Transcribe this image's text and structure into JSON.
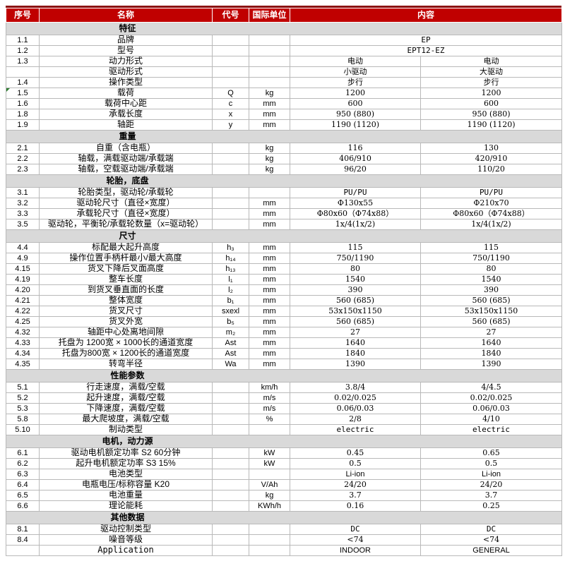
{
  "colors": {
    "header_bg": "#c00000",
    "header_top_strip": "#8b0d0d",
    "header_text": "#ffffff",
    "section_bg": "#d9d9d9",
    "grid_line": "#b9b9b9",
    "marker_green": "#2f7d32",
    "text": "#000000"
  },
  "table": {
    "header": {
      "columns": [
        "序号",
        "名称",
        "代号",
        "国际单位",
        "内容"
      ]
    },
    "sections": [
      {
        "title": "特征",
        "rows": [
          {
            "no": "1.1",
            "name": "品牌",
            "code": "",
            "unit": "",
            "v1": "EP",
            "v2": "",
            "merged": true,
            "vf": "mono"
          },
          {
            "no": "1.2",
            "name": "型号",
            "code": "",
            "unit": "",
            "v1": "EPT12-EZ",
            "v2": "",
            "merged": true,
            "vf": "mono"
          },
          {
            "no": "1.3",
            "name": "动力形式",
            "code": "",
            "unit": "",
            "v1": "电动",
            "v2": "电动"
          },
          {
            "no": "",
            "name": "驱动形式",
            "code": "",
            "unit": "",
            "v1": "小驱动",
            "v2": "大驱动"
          },
          {
            "no": "1.4",
            "name": "操作类型",
            "code": "",
            "unit": "",
            "v1": "步行",
            "v2": "步行"
          },
          {
            "no": "1.5",
            "name": "载荷",
            "code": "Q",
            "unit": "kg",
            "v1": "1200",
            "v2": "1200",
            "marker": true
          },
          {
            "no": "1.6",
            "name": "载荷中心距",
            "code": "c",
            "unit": "mm",
            "v1": "600",
            "v2": "600"
          },
          {
            "no": "1.8",
            "name": "承载长度",
            "code": "x",
            "unit": "mm",
            "v1": "950 (880)",
            "v2": "950 (880)"
          },
          {
            "no": "1.9",
            "name": "轴距",
            "code": "y",
            "unit": "mm",
            "v1": "1190 (1120)",
            "v2": "1190 (1120)"
          }
        ]
      },
      {
        "title": "重量",
        "rows": [
          {
            "no": "2.1",
            "name": "自重（含电瓶）",
            "code": "",
            "unit": "kg",
            "v1": "116",
            "v2": "130"
          },
          {
            "no": "2.2",
            "name": "轴载，满载驱动端/承载端",
            "code": "",
            "unit": "kg",
            "v1": "406/910",
            "v2": "420/910"
          },
          {
            "no": "2.3",
            "name": "轴载，空载驱动端/承载端",
            "code": "",
            "unit": "kg",
            "v1": "96/20",
            "v2": "110/20"
          }
        ]
      },
      {
        "title": "轮胎，底盘",
        "rows": [
          {
            "no": "3.1",
            "name": "轮胎类型，驱动轮/承载轮",
            "code": "",
            "unit": "",
            "v1": "PU/PU",
            "v2": "PU/PU",
            "vf": "mono"
          },
          {
            "no": "3.2",
            "name": "驱动轮尺寸（直径×宽度）",
            "code": "",
            "unit": "mm",
            "v1": "Φ130x55",
            "v2": "Φ210x70"
          },
          {
            "no": "3.3",
            "name": "承载轮尺寸（直径×宽度）",
            "code": "",
            "unit": "mm",
            "v1": "Φ80x60（Φ74x88）",
            "v2": "Φ80x60（Φ74x88）"
          },
          {
            "no": "3.5",
            "name": "驱动轮，平衡轮/承载轮数量（x=驱动轮）",
            "code": "",
            "unit": "mm",
            "v1": "1x/4(1x/2)",
            "v2": "1x/4(1x/2)"
          }
        ]
      },
      {
        "title": "尺寸",
        "rows": [
          {
            "no": "4.4",
            "name": "标配最大起升高度",
            "code": "h₃",
            "unit": "mm",
            "v1": "115",
            "v2": "115"
          },
          {
            "no": "4.9",
            "name": "操作位置手柄杆最小/最大高度",
            "code": "h₁₄",
            "unit": "mm",
            "v1": "750/1190",
            "v2": "750/1190"
          },
          {
            "no": "4.15",
            "name": "货叉下降后叉面高度",
            "code": "h₁₃",
            "unit": "mm",
            "v1": "80",
            "v2": "80"
          },
          {
            "no": "4.19",
            "name": "整车长度",
            "code": "l₁",
            "unit": "mm",
            "v1": "1540",
            "v2": "1540"
          },
          {
            "no": "4.20",
            "name": "到货叉垂直面的长度",
            "code": "l₂",
            "unit": "mm",
            "v1": "390",
            "v2": "390"
          },
          {
            "no": "4.21",
            "name": "整体宽度",
            "code": "b₁",
            "unit": "mm",
            "v1": "560 (685)",
            "v2": "560 (685)"
          },
          {
            "no": "4.22",
            "name": "货叉尺寸",
            "code": "sxexl",
            "unit": "mm",
            "v1": "53x150x1150",
            "v2": "53x150x1150"
          },
          {
            "no": "4.25",
            "name": "货叉外宽",
            "code": "b₅",
            "unit": "mm",
            "v1": "560 (685)",
            "v2": "560 (685)"
          },
          {
            "no": "4.32",
            "name": "轴距中心处离地间隙",
            "code": "m₂",
            "unit": "mm",
            "v1": "27",
            "v2": "27"
          },
          {
            "no": "4.33",
            "name": "托盘为 1200宽 × 1000长的通道宽度",
            "code": "Ast",
            "unit": "mm",
            "v1": "1640",
            "v2": "1640"
          },
          {
            "no": "4.34",
            "name": "托盘为800宽 × 1200长的通道宽度",
            "code": "Ast",
            "unit": "mm",
            "v1": "1840",
            "v2": "1840"
          },
          {
            "no": "4.35",
            "name": "转弯半径",
            "code": "Wa",
            "unit": "mm",
            "v1": "1390",
            "v2": "1390"
          }
        ]
      },
      {
        "title": "性能参数",
        "rows": [
          {
            "no": "5.1",
            "name": "行走速度，满载/空载",
            "code": "",
            "unit": "km/h",
            "v1": "3.8/4",
            "v2": "4/4.5"
          },
          {
            "no": "5.2",
            "name": "起升速度，满载/空载",
            "code": "",
            "unit": "m/s",
            "v1": "0.02/0.025",
            "v2": "0.02/0.025"
          },
          {
            "no": "5.3",
            "name": "下降速度，满载/空载",
            "code": "",
            "unit": "m/s",
            "v1": "0.06/0.03",
            "v2": "0.06/0.03"
          },
          {
            "no": "5.8",
            "name": "最大爬坡度，满载/空载",
            "code": "",
            "unit": "%",
            "v1": "2/8",
            "v2": "4/10"
          },
          {
            "no": "5.10",
            "name": "制动类型",
            "code": "",
            "unit": "",
            "v1": "electric",
            "v2": "electric",
            "vf": "mono"
          }
        ]
      },
      {
        "title": "电机，动力源",
        "rows": [
          {
            "no": "6.1",
            "name": "驱动电机额定功率 S2 60分钟",
            "code": "",
            "unit": "kW",
            "v1": "0.45",
            "v2": "0.65"
          },
          {
            "no": "6.2",
            "name": "起升电机额定功率 S3 15%",
            "code": "",
            "unit": "kW",
            "v1": "0.5",
            "v2": "0.5"
          },
          {
            "no": "6.3",
            "name": "电池类型",
            "code": "",
            "unit": "",
            "v1": "Li-ion",
            "v2": "Li-ion",
            "vf": "sans"
          },
          {
            "no": "6.4",
            "name": "电瓶电压/标称容量 K20",
            "code": "",
            "unit": "V/Ah",
            "v1": "24/20",
            "v2": "24/20"
          },
          {
            "no": "6.5",
            "name": "电池重量",
            "code": "",
            "unit": "kg",
            "v1": "3.7",
            "v2": "3.7"
          },
          {
            "no": "6.6",
            "name": "理论能耗",
            "code": "",
            "unit": "KWh/h",
            "v1": "0.16",
            "v2": "0.25"
          }
        ]
      },
      {
        "title": "其他数据",
        "rows": [
          {
            "no": "8.1",
            "name": "驱动控制类型",
            "code": "",
            "unit": "",
            "v1": "DC",
            "v2": "DC",
            "vf": "mono"
          },
          {
            "no": "8.4",
            "name": "噪音等级",
            "code": "",
            "unit": "",
            "v1": "<74",
            "v2": "<74"
          },
          {
            "no": "",
            "name": "Application",
            "code": "",
            "unit": "",
            "v1": "INDOOR",
            "v2": "GENERAL",
            "nf": "mono",
            "vf": "sans"
          }
        ]
      }
    ]
  }
}
